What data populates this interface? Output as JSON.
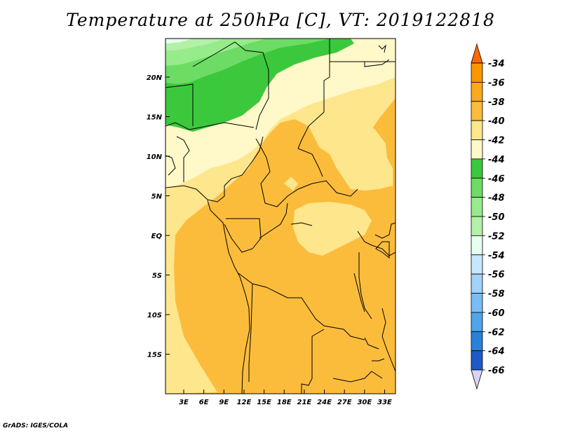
{
  "title": "Temperature at 250hPa [C], VT: 2019122818",
  "credit": "GrADS: IGES/COLA",
  "map": {
    "lat_labels": [
      {
        "lat": 20,
        "text": "20N"
      },
      {
        "lat": 15,
        "text": "15N"
      },
      {
        "lat": 10,
        "text": "10N"
      },
      {
        "lat": 5,
        "text": "5N"
      },
      {
        "lat": 0,
        "text": "EQ"
      },
      {
        "lat": -5,
        "text": "5S"
      },
      {
        "lat": -10,
        "text": "10S"
      },
      {
        "lat": -15,
        "text": "15S"
      }
    ],
    "lon_labels": [
      {
        "lon": 3,
        "text": "3E"
      },
      {
        "lon": 6,
        "text": "6E"
      },
      {
        "lon": 9,
        "text": "9E"
      },
      {
        "lon": 12,
        "text": "12E"
      },
      {
        "lon": 15,
        "text": "15E"
      },
      {
        "lon": 18,
        "text": "18E"
      },
      {
        "lon": 21,
        "text": "21E"
      },
      {
        "lon": 24,
        "text": "24E"
      },
      {
        "lon": 27,
        "text": "27E"
      },
      {
        "lon": 30,
        "text": "30E"
      },
      {
        "lon": 33,
        "text": "33E"
      }
    ],
    "fill_colors": {
      "lt_50_band": "#b3f0a8",
      "m50_48": "#96eb8a",
      "m48_46": "#6cdc64",
      "m46_44": "#3cc83c",
      "m44_42": "#fff8c8",
      "m42_40": "#fde68c",
      "m40_38": "#fbbc3c"
    }
  },
  "colorbar": {
    "labels": [
      "-34",
      "-36",
      "-38",
      "-40",
      "-42",
      "-44",
      "-46",
      "-48",
      "-50",
      "-52",
      "-54",
      "-56",
      "-58",
      "-60",
      "-62",
      "-64",
      "-66"
    ],
    "colors": [
      "#ff6a00",
      "#fa9600",
      "#faaa19",
      "#fbbc3c",
      "#fde68c",
      "#fff8c8",
      "#3cc83c",
      "#6cdc64",
      "#96eb8a",
      "#b3f0a8",
      "#e6fff0",
      "#c8e6ff",
      "#a0d2fa",
      "#78bef5",
      "#50a5eb",
      "#2882dc",
      "#1e5ac8",
      "#1432a0"
    ],
    "top_color": "#ff3c14",
    "bottom_color": "#dcd2f5"
  }
}
